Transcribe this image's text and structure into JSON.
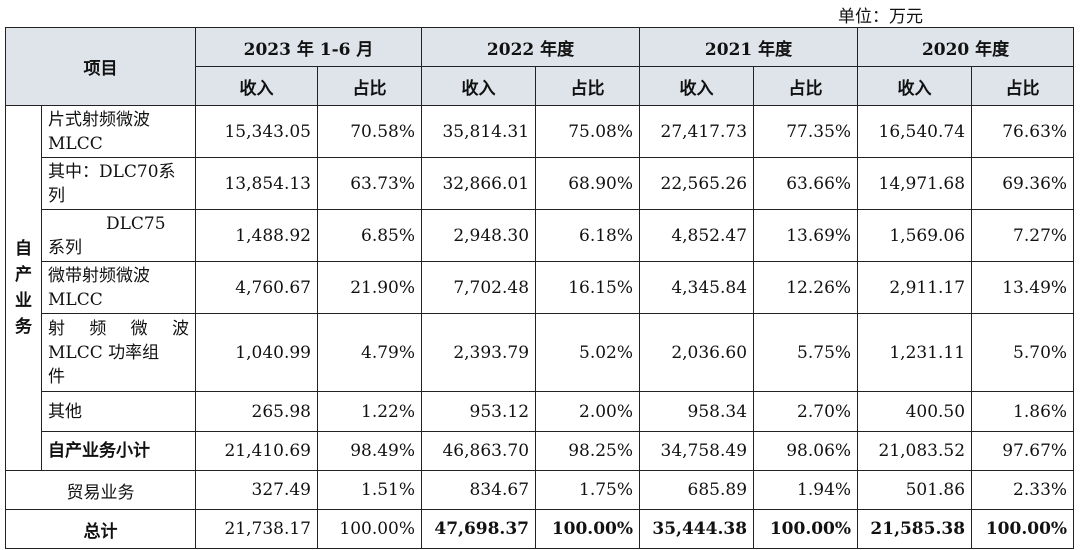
{
  "unit_label": "单位：万元",
  "header": {
    "item": "项目",
    "periods": [
      "2023 年 1-6 月",
      "2022 年度",
      "2021 年度",
      "2020 年度"
    ],
    "revenue": "收入",
    "ratio": "占比"
  },
  "group_label": [
    "自",
    "产",
    "业",
    "务"
  ],
  "rows": [
    {
      "label": "片式射频微波MLCC",
      "values": [
        "15,343.05",
        "70.58%",
        "35,814.31",
        "75.08%",
        "27,417.73",
        "77.35%",
        "16,540.74",
        "76.63%"
      ]
    },
    {
      "label": "其中：DLC70系列",
      "values": [
        "13,854.13",
        "63.73%",
        "32,866.01",
        "68.90%",
        "22,565.26",
        "63.66%",
        "14,971.68",
        "69.36%"
      ]
    },
    {
      "label_l1": "DLC75",
      "label_l2": "系列",
      "values": [
        "1,488.92",
        "6.85%",
        "2,948.30",
        "6.18%",
        "4,852.47",
        "13.69%",
        "1,569.06",
        "7.27%"
      ]
    },
    {
      "label": "微带射频微波MLCC",
      "values": [
        "4,760.67",
        "21.90%",
        "7,702.48",
        "16.15%",
        "4,345.84",
        "12.26%",
        "2,911.17",
        "13.49%"
      ]
    },
    {
      "label_l1": "射 频 微 波",
      "label_l2": "MLCC 功率组",
      "label_l3": "件",
      "values": [
        "1,040.99",
        "4.79%",
        "2,393.79",
        "5.02%",
        "2,036.60",
        "5.75%",
        "1,231.11",
        "5.70%"
      ]
    },
    {
      "label": "其他",
      "values": [
        "265.98",
        "1.22%",
        "953.12",
        "2.00%",
        "958.34",
        "2.70%",
        "400.50",
        "1.86%"
      ]
    },
    {
      "label": "自产业务小计",
      "values": [
        "21,410.69",
        "98.49%",
        "46,863.70",
        "98.25%",
        "34,758.49",
        "98.06%",
        "21,083.52",
        "97.67%"
      ]
    }
  ],
  "trade": {
    "label": "贸易业务",
    "values": [
      "327.49",
      "1.51%",
      "834.67",
      "1.75%",
      "685.89",
      "1.94%",
      "501.86",
      "2.33%"
    ]
  },
  "total": {
    "label": "总计",
    "values": [
      "21,738.17",
      "100.00%",
      "47,698.37",
      "100.00%",
      "35,444.38",
      "100.00%",
      "21,585.38",
      "100.00%"
    ]
  }
}
